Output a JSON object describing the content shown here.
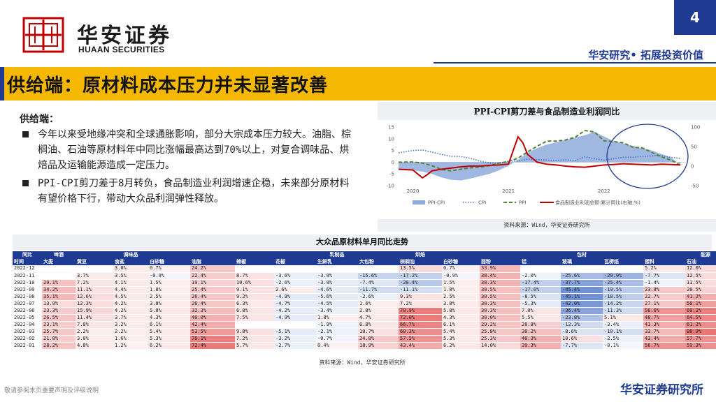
{
  "page_number": "4",
  "brand": {
    "cn": "华安证券",
    "en": "HUAAN SECURITIES",
    "tagline": "华安研究• 拓展投资价值",
    "footer": "华安证券研究所"
  },
  "title": "供给端：原材料成本压力并未显著改善",
  "supply": {
    "heading": "供给端：",
    "bullets": [
      "今年以来受地缘冲突和全球通胀影响，部分大宗成本压力较大。油脂、棕榈油、石油等原材料年中同比涨幅最高达到70%以上，对复合调味品、烘焙品及运输能源造成一定压力。",
      "PPI-CPI剪刀差于8月转负，食品制造业利润增速企稳，未来部分原材料有望价格下行，带动大众品利润弹性释放。"
    ]
  },
  "footer_note": "敬请参阅末页重要声明及评级说明",
  "colors": {
    "navy": "#1f3a93",
    "gold": "#f5b800",
    "red_line": "#c00000",
    "green_line": "#548235",
    "blue_line": "#4472c4",
    "area": "#8faadc"
  },
  "chart_data": [
    {
      "type": "line",
      "title": "PPI-CPI剪刀差与食品制造业利润同比",
      "source": "资料来源：Wind，华安证券研究所",
      "x_ticks": [
        "2020",
        "2021",
        "2022"
      ],
      "y_left": {
        "ticks": [
          15,
          10,
          5,
          0,
          -5,
          -10
        ],
        "range": [
          -10,
          15
        ]
      },
      "y_right": {
        "ticks": [
          100,
          50,
          0,
          -50
        ],
        "range": [
          -50,
          100
        ]
      },
      "x_range": [
        2019.85,
        2022.85
      ],
      "series": [
        {
          "name": "PPI-CPI",
          "style": "area",
          "axis": "left",
          "x": [
            2019.85,
            2020.0,
            2020.1,
            2020.2,
            2020.3,
            2020.4,
            2020.5,
            2020.6,
            2020.7,
            2020.8,
            2020.9,
            2021.0,
            2021.1,
            2021.2,
            2021.3,
            2021.4,
            2021.5,
            2021.6,
            2021.7,
            2021.8,
            2021.9,
            2022.0,
            2022.1,
            2022.2,
            2022.3,
            2022.4,
            2022.5,
            2022.6,
            2022.7,
            2022.8
          ],
          "y": [
            -3,
            -3.5,
            -4,
            -5,
            -6.5,
            -7.5,
            -7.8,
            -7,
            -6,
            -5,
            -3.5,
            -1.5,
            1,
            4,
            6,
            7.5,
            8.5,
            9.5,
            10.5,
            11.5,
            13,
            11,
            9,
            8,
            7,
            6,
            5,
            3.5,
            2,
            -1
          ]
        },
        {
          "name": "CPI",
          "style": "dotted",
          "axis": "left",
          "x": [
            2019.85,
            2020.0,
            2020.1,
            2020.2,
            2020.3,
            2020.4,
            2020.5,
            2020.6,
            2020.7,
            2020.8,
            2020.9,
            2021.0,
            2021.1,
            2021.2,
            2021.3,
            2021.4,
            2021.5,
            2021.6,
            2021.7,
            2021.8,
            2021.9,
            2022.0,
            2022.1,
            2022.2,
            2022.3,
            2022.4,
            2022.5,
            2022.6,
            2022.7,
            2022.8
          ],
          "y": [
            4,
            5,
            5.2,
            4.3,
            3.3,
            2.5,
            2.4,
            1.7,
            0.5,
            -0.3,
            -0.5,
            0.4,
            0.5,
            1.3,
            1.1,
            0.9,
            0.8,
            1,
            0.7,
            2.3,
            1.5,
            0.9,
            1.5,
            2.1,
            2.1,
            2.5,
            2.7,
            2.8,
            2.1,
            1.6
          ]
        },
        {
          "name": "PPI",
          "style": "dashed",
          "axis": "left",
          "x": [
            2019.85,
            2020.0,
            2020.1,
            2020.2,
            2020.3,
            2020.4,
            2020.5,
            2020.6,
            2020.7,
            2020.8,
            2020.9,
            2021.0,
            2021.1,
            2021.2,
            2021.3,
            2021.4,
            2021.5,
            2021.6,
            2021.7,
            2021.8,
            2021.9,
            2022.0,
            2022.1,
            2022.2,
            2022.3,
            2022.4,
            2022.5,
            2022.6,
            2022.7,
            2022.8
          ],
          "y": [
            0,
            0.1,
            -0.4,
            -1.5,
            -3.1,
            -3.7,
            -3,
            -2.4,
            -2.1,
            -1.5,
            -0.4,
            0.3,
            1.7,
            4.4,
            6.8,
            9,
            9,
            9.5,
            10.7,
            13.5,
            12.9,
            9.1,
            8.8,
            8.3,
            6.4,
            6.1,
            4.2,
            2.3,
            0.9,
            -1.3
          ]
        },
        {
          "name": "食品制造业利润总额:累计同比(右轴;%)",
          "style": "solid",
          "axis": "right",
          "x": [
            2019.85,
            2020.0,
            2020.1,
            2020.15,
            2020.2,
            2020.3,
            2020.4,
            2020.5,
            2020.6,
            2020.7,
            2020.8,
            2020.9,
            2021.0,
            2021.05,
            2021.1,
            2021.15,
            2021.2,
            2021.3,
            2021.4,
            2021.5,
            2021.6,
            2021.7,
            2021.8,
            2021.9,
            2022.0,
            2022.1,
            2022.2,
            2022.3,
            2022.4,
            2022.5,
            2022.6,
            2022.7,
            2022.8
          ],
          "y": [
            -8,
            -10,
            -30,
            -22,
            -12,
            -8,
            -5,
            -2,
            0,
            0,
            2,
            3,
            5,
            40,
            75,
            60,
            30,
            10,
            5,
            3,
            0,
            -2,
            -3,
            0,
            3,
            4,
            6,
            5,
            4,
            3,
            5,
            4,
            3
          ]
        }
      ],
      "legend_position": "bottom"
    },
    {
      "type": "table",
      "title": "大众品原材料单月同比走势",
      "source": "资料来源：Wind，华安证券研究所",
      "groups": [
        "同比",
        "啤酒",
        "",
        "调味品",
        "",
        "",
        "",
        "",
        "乳制品",
        "",
        "烘焙",
        "",
        "",
        "",
        "包材",
        "",
        "",
        "能源"
      ],
      "headers": [
        "时间",
        "大麦",
        "黄豆",
        "食盐",
        "白砂糖",
        "油脂",
        "辣椒",
        "花椒",
        "生鲜乳",
        "大包粉",
        "棕榈油",
        "白砂糖",
        "面粉",
        "铝",
        "玻璃",
        "瓦楞纸",
        "塑料",
        "石油"
      ],
      "rows": [
        [
          "2022-12",
          "",
          "",
          "3.0%",
          "0.7%",
          "24.2%",
          "",
          "",
          "",
          "",
          "13.5%",
          "0.7%",
          "33.9%",
          "",
          "",
          "",
          "5.2%",
          "12.0%"
        ],
        [
          "2022-11",
          "",
          "3.7%",
          "3.5%",
          "-0.9%",
          "22.4%",
          "8.7%",
          "-3.6%",
          "-3.9%",
          "-15.6%",
          "-17.2%",
          "-0.9%",
          "38.4%",
          "-2.0%",
          "-25.6%",
          "-29.9%",
          "-7.7%",
          "12.5%"
        ],
        [
          "2022-10",
          "29.1%",
          "7.2%",
          "4.1%",
          "1.5%",
          "19.1%",
          "10.6%",
          "-2.6%",
          "-3.9%",
          "-7.4%",
          "-20.4%",
          "1.5%",
          "38.3%",
          "-17.4%",
          "-37.7%",
          "-25.4%",
          "-1.4%",
          "11.5%"
        ],
        [
          "2022-09",
          "34.2%",
          "11.1%",
          "4.4%",
          "1.8%",
          "25.4%",
          "9.1%",
          "2.6%",
          "-4.6%",
          "-11.7%",
          "-11.1%",
          "1.8%",
          "30.5%",
          "-17.6%",
          "-45.4%",
          "-19.5%",
          "23.8%",
          "20.5%"
        ],
        [
          "2022-08",
          "35.1%",
          "12.6%",
          "4.5%",
          "2.5%",
          "26.4%",
          "9.2%",
          "-4.9%",
          "-5.6%",
          "-2.6%",
          "9.3%",
          "2.5%",
          "30.5%",
          "-8.5%",
          "-45.1%",
          "-18.5%",
          "22.7%",
          "41.2%"
        ],
        [
          "2022-07",
          "13.9%",
          "12.3%",
          "4.2%",
          "3.8%",
          "26.4%",
          "6.3%",
          "-4.7%",
          "-4.5%",
          "1.6%",
          "7.2%",
          "3.8%",
          "30.3%",
          "-5.3%",
          "-42.0%",
          "-14.2%",
          "27.1%",
          "50.1%"
        ],
        [
          "2022-06",
          "23.3%",
          "15.9%",
          "4.2%",
          "5.8%",
          "32.3%",
          "6.8%",
          "-4.2%",
          "-3.4%",
          "2.8%",
          "70.9%",
          "5.8%",
          "30.3%",
          "7.0%",
          "-36.4%",
          "-11.3%",
          "56.6%",
          "69.2%"
        ],
        [
          "2022-05",
          "26.5%",
          "11.4%",
          "3.7%",
          "4.3%",
          "40.0%",
          "7.5%",
          "-4.9%",
          "1.8%",
          "4.7%",
          "72.0%",
          "4.3%",
          "30.0%",
          "5.5%",
          "-23.8%",
          "5.1%",
          "48.7%",
          "64.5%"
        ],
        [
          "2022-04",
          "23.1%",
          "7.0%",
          "3.2%",
          "6.1%",
          "42.4%",
          "",
          "",
          "-1.9%",
          "6.8%",
          "66.7%",
          "6.1%",
          "29.2%",
          "20.8%",
          "-12.3%",
          "-3.4%",
          "41.3%",
          "61.2%"
        ],
        [
          "2022-03",
          "25.7%",
          "2.2%",
          "2.2%",
          "5.4%",
          "53.5%",
          "9.8%",
          "-5.1%",
          "-2.1%",
          "10.7%",
          "60.3%",
          "5.4%",
          "25.8%",
          "30.2%",
          "-8.6%",
          "-10.1%",
          "33.7%",
          "80.9%"
        ],
        [
          "2022-02",
          "21.8%",
          "3.0%",
          "1.6%",
          "5.3%",
          "70.1%",
          "7.2%",
          "-3.2%",
          "-0.7%",
          "24.8%",
          "57.5%",
          "5.3%",
          "25.3%",
          "40.3%",
          "10.6%",
          "-2.5%",
          "43.4%",
          "57.7%"
        ],
        [
          "2022-01",
          "28.2%",
          "4.8%",
          "1.2%",
          "6.2%",
          "72.4%",
          "5.7%",
          "-2.7%",
          "0.4%",
          "18.9%",
          "43.4%",
          "6.2%",
          "14.0%",
          "39.3%",
          "-7.7%",
          "-0.1%",
          "56.7%",
          "59.3%"
        ]
      ]
    }
  ]
}
